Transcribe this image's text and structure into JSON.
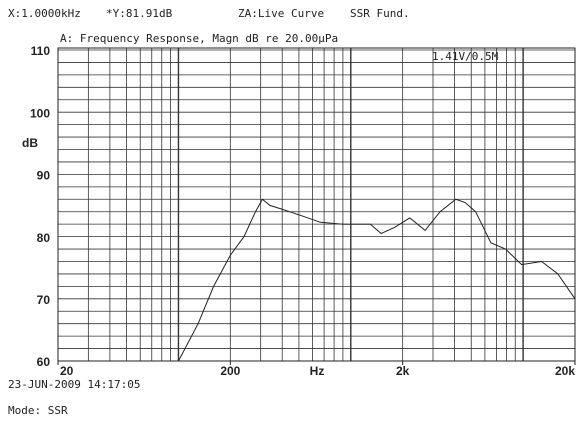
{
  "chart_data": {
    "type": "line",
    "header": [
      "X:1.0000kHz",
      "*Y:81.91dB",
      "ZA:Live Curve",
      "SSR Fund."
    ],
    "title": "A: Frequency Response, Magn dB re 20.00µPa",
    "annotation": "1.41V/0.5M",
    "ylabel": "dB",
    "xlabel": "Hz",
    "timestamp": "23-JUN-2009 14:17:05",
    "mode": "Mode: SSR",
    "log_x": true,
    "grid": true,
    "color": "#222222",
    "xlim": [
      20,
      20000
    ],
    "ylim": [
      60,
      110
    ],
    "xticks": [
      20,
      200,
      {
        "value": 2000,
        "label": "2k"
      },
      {
        "value": 20000,
        "label": "20k"
      }
    ],
    "yticks": [
      60,
      70,
      80,
      90,
      100,
      110
    ],
    "xgrid": [
      20,
      30,
      40,
      50,
      60,
      70,
      80,
      90,
      100,
      200,
      300,
      400,
      500,
      600,
      700,
      800,
      900,
      1000,
      2000,
      3000,
      4000,
      5000,
      6000,
      7000,
      8000,
      9000,
      10000,
      20000
    ],
    "ygrid": [
      60,
      62,
      64,
      66,
      68,
      70,
      72,
      74,
      76,
      78,
      80,
      82,
      84,
      86,
      88,
      90,
      92,
      94,
      96,
      98,
      100,
      102,
      104,
      106,
      108,
      110
    ],
    "x": [
      100,
      130,
      160,
      200,
      240,
      280,
      307,
      340,
      390,
      500,
      667,
      900,
      1300,
      1500,
      1800,
      2200,
      2700,
      3300,
      4060,
      4600,
      5300,
      6500,
      7900,
      9800,
      12800,
      15900,
      20000
    ],
    "values": [
      60,
      66,
      72,
      77,
      80,
      84,
      86,
      85,
      84.5,
      83.5,
      82.3,
      82,
      82,
      80.5,
      81.5,
      83,
      81,
      84,
      86,
      85.5,
      84,
      79,
      78,
      75.5,
      76,
      74,
      70
    ]
  }
}
